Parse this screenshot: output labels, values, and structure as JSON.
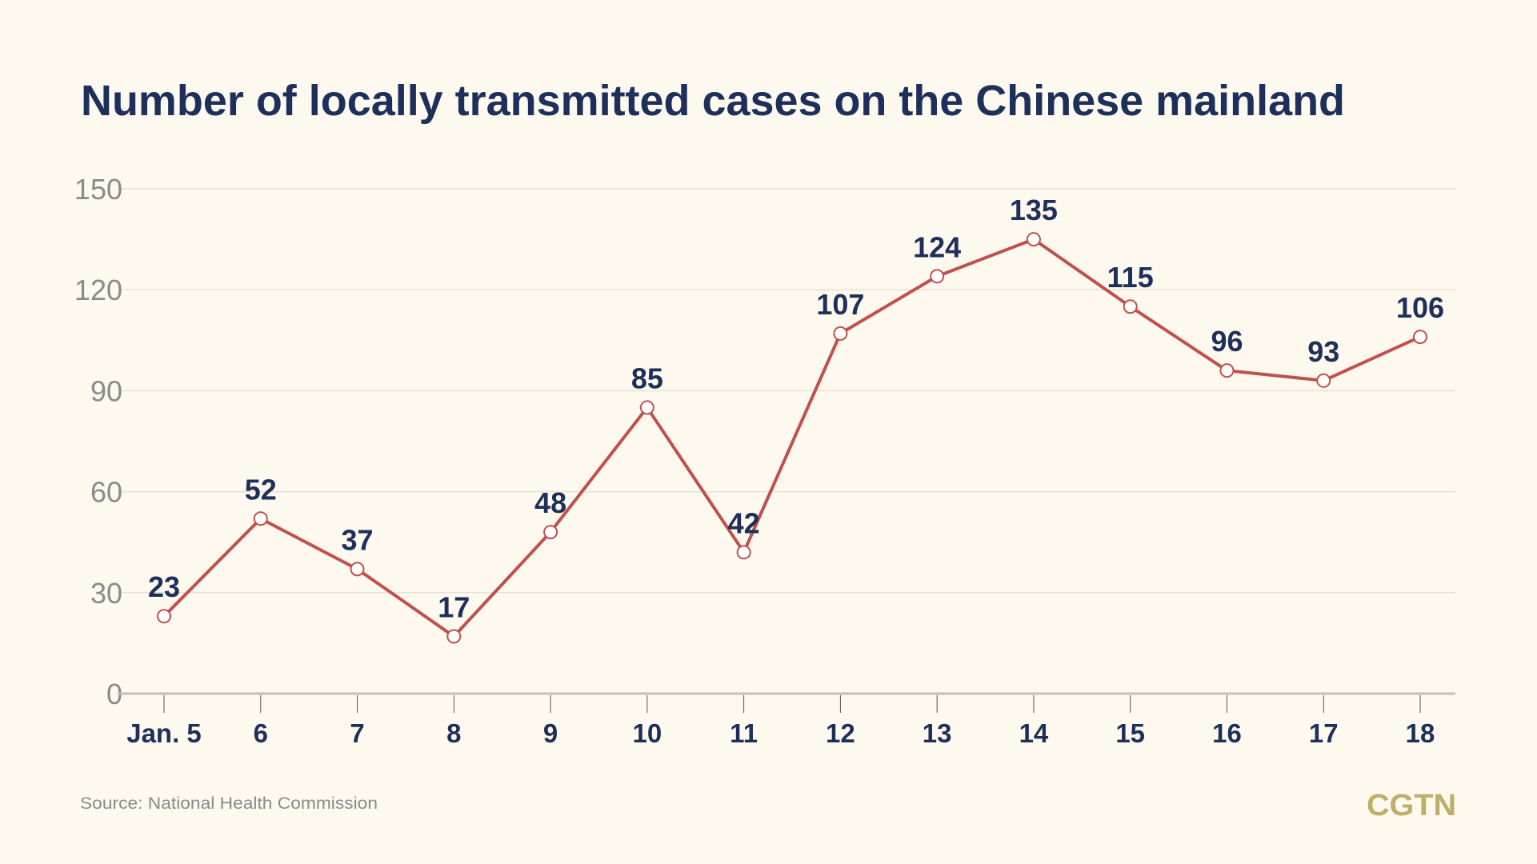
{
  "chart_data": {
    "type": "line",
    "title": "Number of locally transmitted cases on the Chinese mainland",
    "categories": [
      "Jan. 5",
      "6",
      "7",
      "8",
      "9",
      "10",
      "11",
      "12",
      "13",
      "14",
      "15",
      "16",
      "17",
      "18"
    ],
    "values": [
      23,
      52,
      37,
      17,
      48,
      85,
      42,
      107,
      124,
      135,
      115,
      96,
      93,
      106
    ],
    "ylim": [
      0,
      150
    ],
    "yticks": [
      "0",
      "30",
      "60",
      "90",
      "120",
      "150"
    ],
    "grid": true,
    "xlabel": "",
    "ylabel": "",
    "colors": {
      "line": "#c0504d",
      "text": "#1d2f5a",
      "background": "#fdf9ee"
    }
  },
  "footer": {
    "source": "Source: National Health Commission",
    "logo": "CGTN"
  }
}
